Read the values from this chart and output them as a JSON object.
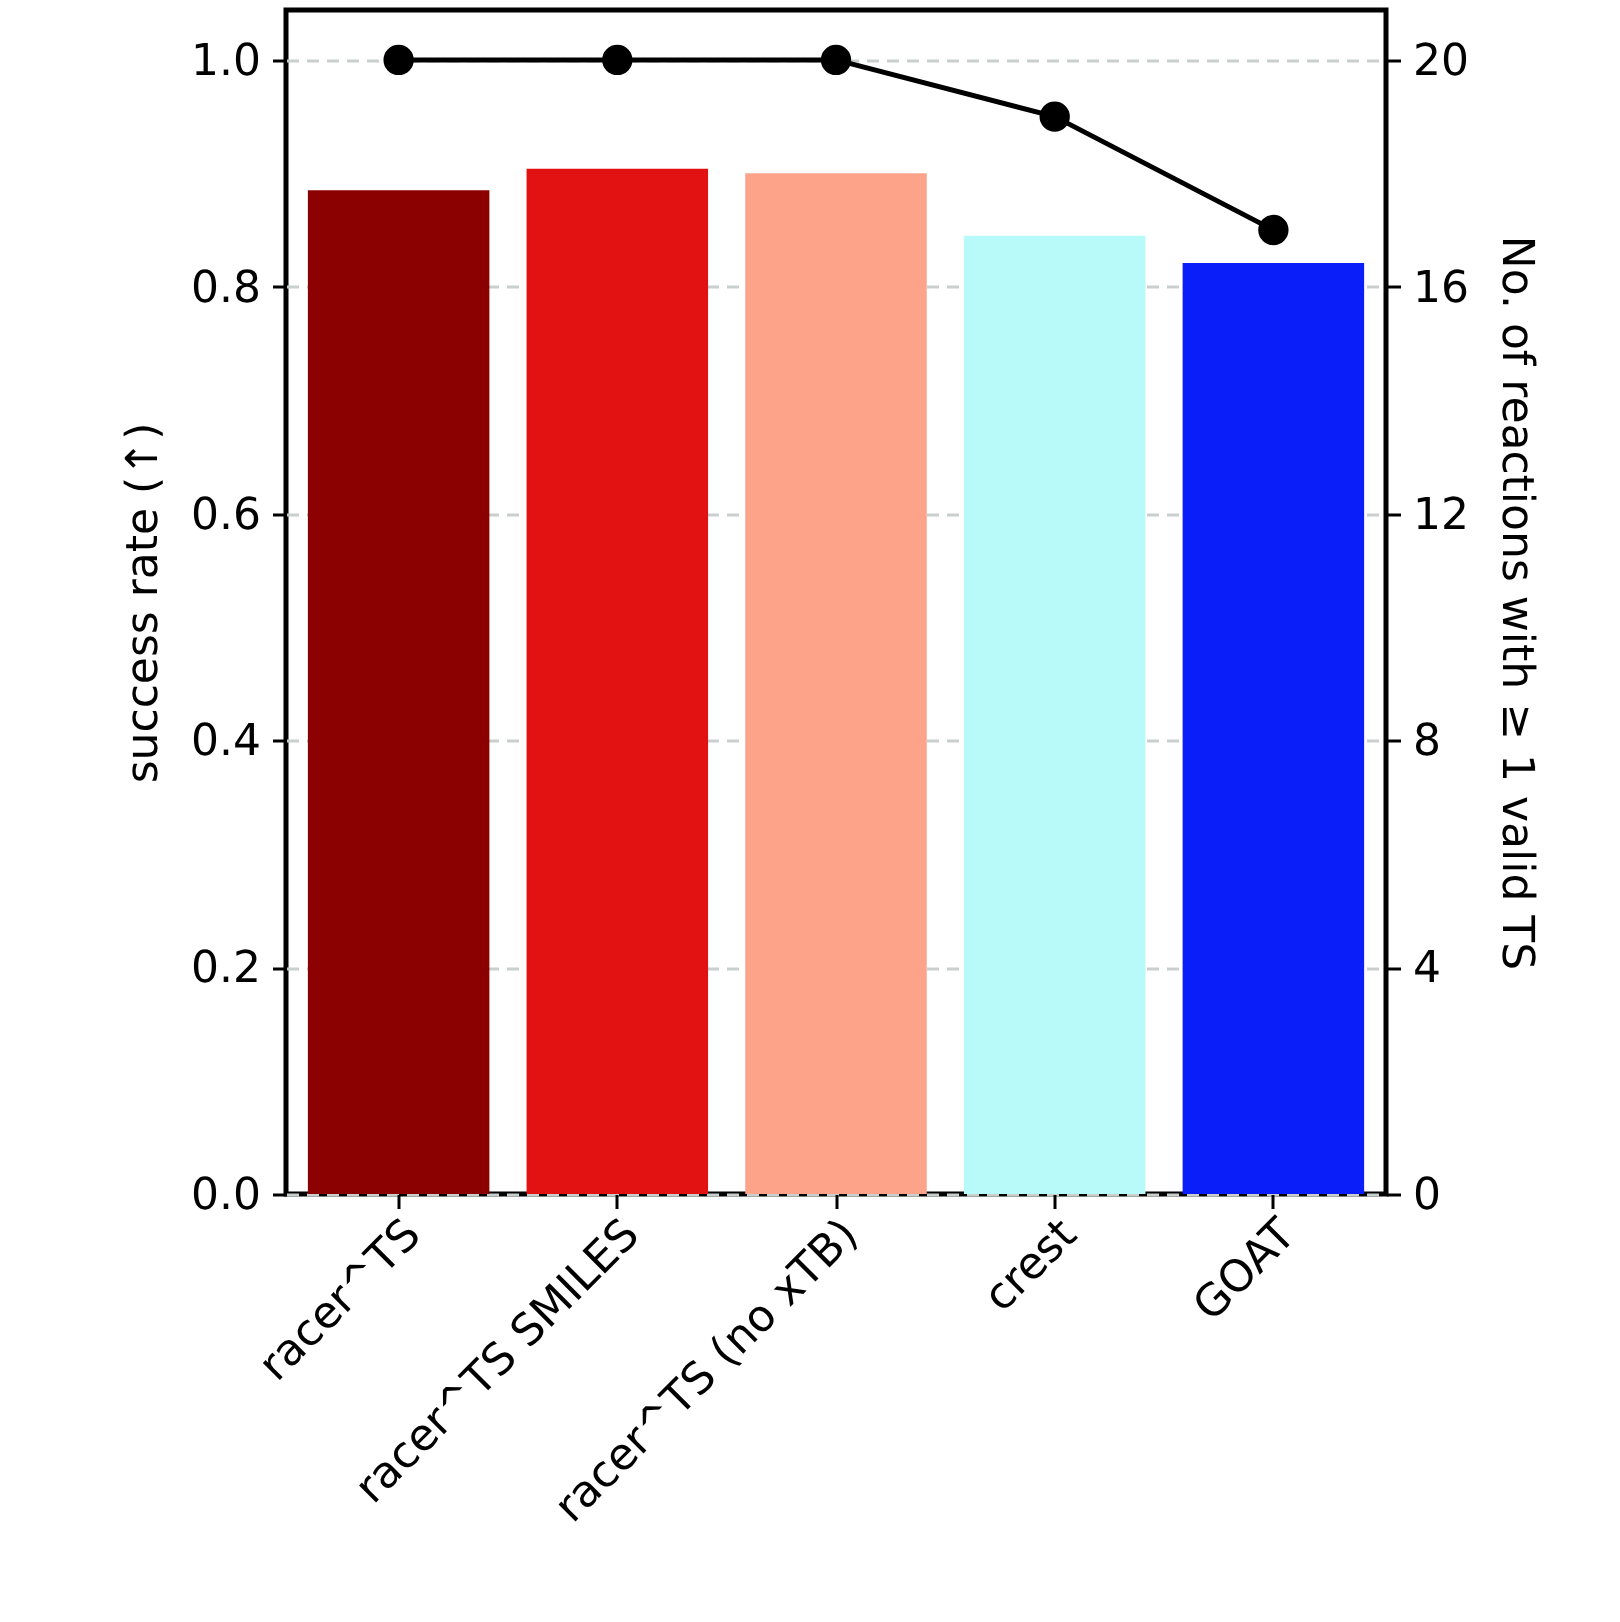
{
  "chart_data": {
    "type": "bar",
    "categories": [
      "racer^TS",
      "racer^TS SMILES",
      "racer^TS (no xTB)",
      "crest",
      "GOAT"
    ],
    "series": [
      {
        "colors": [
          "#8b0000",
          "#e31212",
          "#fca38a",
          "#b8fafa",
          "#0a1efa"
        ],
        "values": [
          0.885,
          0.904,
          0.9,
          0.845,
          0.821
        ]
      },
      {
        "type": "line",
        "axis": "y2",
        "color": "#000000",
        "values": [
          20,
          20,
          20,
          19,
          17
        ]
      }
    ],
    "ylabel": "success rate (↑)",
    "y2label": "No. of reactions with ≥ 1 valid TS",
    "ylim": [
      0,
      1.044
    ],
    "yticks": [
      {
        "value": 0,
        "label": "0.0"
      },
      {
        "value": 0.2,
        "label": "0.2"
      },
      {
        "value": 0.4,
        "label": "0.4"
      },
      {
        "value": 0.6,
        "label": "0.6"
      },
      {
        "value": 0.8,
        "label": "0.8"
      },
      {
        "value": 1,
        "label": "1.0"
      }
    ],
    "y2lim": [
      0,
      20.88
    ],
    "y2ticks": [
      0,
      4,
      8,
      12,
      16,
      20
    ],
    "grid": "y",
    "marker": "circle",
    "line_style": "solid"
  }
}
